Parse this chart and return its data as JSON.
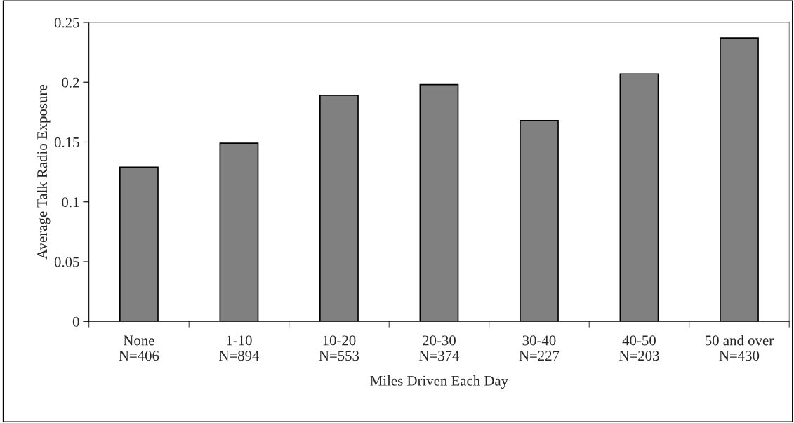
{
  "chart_data": {
    "type": "bar",
    "categories": [
      "None\nN=406",
      "1-10\nN=894",
      "10-20\nN=553",
      "20-30\nN=374",
      "30-40\nN=227",
      "40-50\nN=203",
      "50 and over\nN=430"
    ],
    "values": [
      0.129,
      0.149,
      0.189,
      0.198,
      0.168,
      0.207,
      0.237
    ],
    "color": "#808080",
    "xlabel": "Miles Driven Each Day",
    "ylabel": "Average Talk Radio Exposure",
    "ylim": [
      0,
      0.25
    ],
    "yticks": [
      0,
      0.05,
      0.1,
      0.15,
      0.2,
      0.25
    ],
    "grid": false
  }
}
